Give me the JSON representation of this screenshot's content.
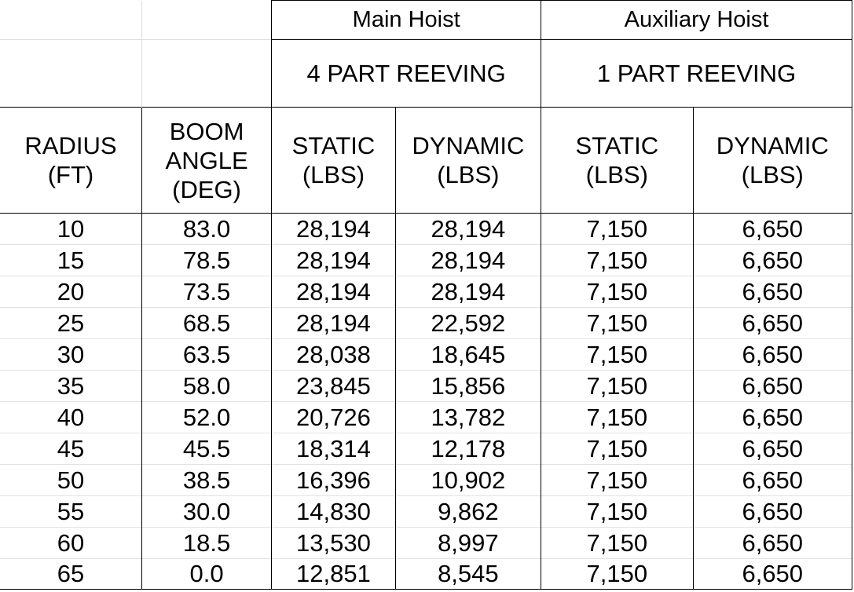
{
  "header": {
    "main_hoist": "Main Hoist",
    "auxiliary_hoist": "Auxiliary Hoist",
    "main_reeving": "4 PART REEVING",
    "aux_reeving": "1 PART REEVING"
  },
  "columns": {
    "radius": [
      "RADIUS",
      "(FT)"
    ],
    "boom_angle": [
      "BOOM",
      "ANGLE",
      "(DEG)"
    ],
    "main_static": [
      "STATIC",
      "(LBS)"
    ],
    "main_dynamic": [
      "DYNAMIC",
      "(LBS)"
    ],
    "aux_static": [
      "STATIC",
      "(LBS)"
    ],
    "aux_dynamic": [
      "DYNAMIC",
      "(LBS)"
    ]
  },
  "rows": [
    [
      "10",
      "83.0",
      "28,194",
      "28,194",
      "7,150",
      "6,650"
    ],
    [
      "15",
      "78.5",
      "28,194",
      "28,194",
      "7,150",
      "6,650"
    ],
    [
      "20",
      "73.5",
      "28,194",
      "28,194",
      "7,150",
      "6,650"
    ],
    [
      "25",
      "68.5",
      "28,194",
      "22,592",
      "7,150",
      "6,650"
    ],
    [
      "30",
      "63.5",
      "28,038",
      "18,645",
      "7,150",
      "6,650"
    ],
    [
      "35",
      "58.0",
      "23,845",
      "15,856",
      "7,150",
      "6,650"
    ],
    [
      "40",
      "52.0",
      "20,726",
      "13,782",
      "7,150",
      "6,650"
    ],
    [
      "45",
      "45.5",
      "18,314",
      "12,178",
      "7,150",
      "6,650"
    ],
    [
      "50",
      "38.5",
      "16,396",
      "10,902",
      "7,150",
      "6,650"
    ],
    [
      "55",
      "30.0",
      "14,830",
      "9,862",
      "7,150",
      "6,650"
    ],
    [
      "60",
      "18.5",
      "13,530",
      "8,997",
      "7,150",
      "6,650"
    ],
    [
      "65",
      "0.0",
      "12,851",
      "8,545",
      "7,150",
      "6,650"
    ]
  ]
}
